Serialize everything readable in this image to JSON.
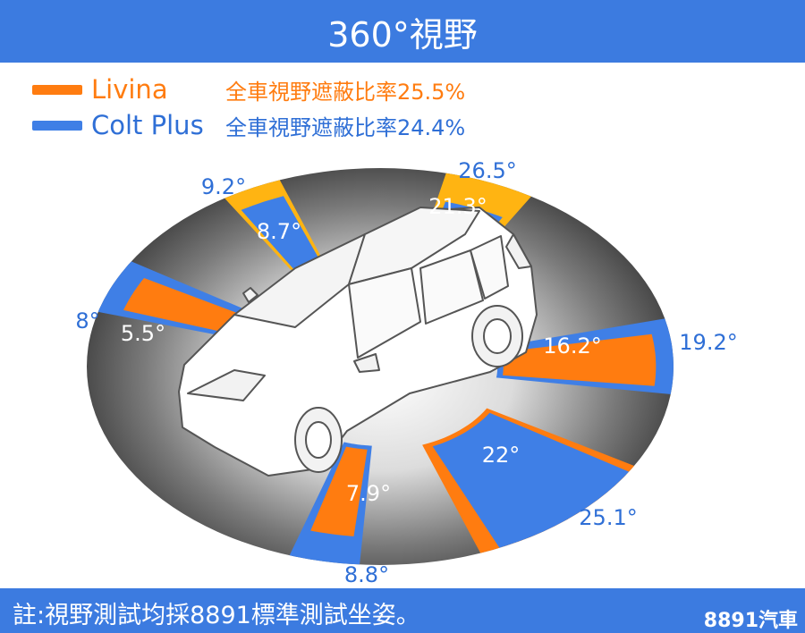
{
  "header": {
    "title": "360°視野"
  },
  "legend": [
    {
      "name": "Livina",
      "stat": "全車視野遮蔽比率25.5%",
      "color": "#ff7c10"
    },
    {
      "name": "Colt Plus",
      "stat": "全車視野遮蔽比率24.4%",
      "color": "#3f7fe6"
    }
  ],
  "colors": {
    "livina": "#ff7c10",
    "colt": "#3f7fe6",
    "wedge_yellow": "#ffb412",
    "label_blue": "#2f6fd6"
  },
  "chart_data": {
    "type": "polar-wedge",
    "title": "360°視野",
    "series": [
      {
        "name": "Livina",
        "values": [
          25.5
        ],
        "unit": "%"
      },
      {
        "name": "Colt Plus",
        "values": [
          24.4
        ],
        "unit": "%"
      }
    ],
    "blind_spots": [
      {
        "position": "front",
        "livina": "21.3°",
        "colt": "26.5°"
      },
      {
        "position": "front-left",
        "livina": "9.2°",
        "colt": "8.7°"
      },
      {
        "position": "left",
        "livina": "5.5°",
        "colt": "8°"
      },
      {
        "position": "right",
        "livina": "16.2°",
        "colt": "19.2°"
      },
      {
        "position": "rear-right",
        "livina": "25.1°",
        "colt": "22°"
      },
      {
        "position": "rear",
        "livina": "7.9°",
        "colt": "8.8°"
      }
    ]
  },
  "footer": {
    "note": "註:視野測試均採8891標準測試坐姿。",
    "brand": "8891汽車"
  }
}
